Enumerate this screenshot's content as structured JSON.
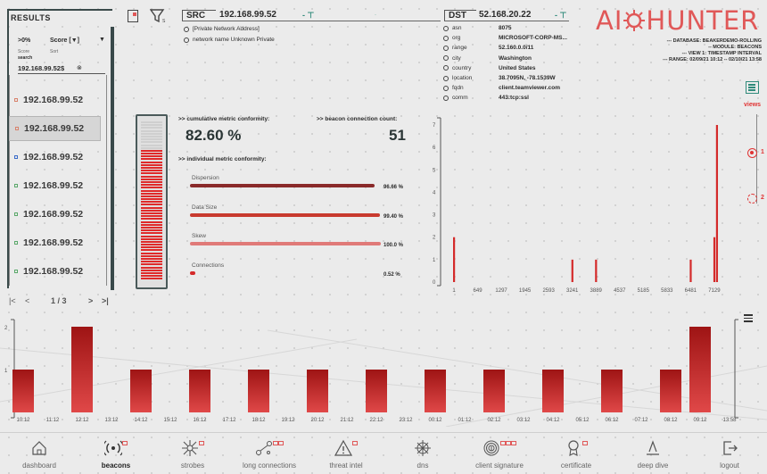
{
  "results": {
    "title": "RESULTS",
    "filter_value": ">0%",
    "sort_value": "Score [▼]",
    "filter_caption": "Score",
    "sort_caption": "Sort",
    "search_caption": "search",
    "search_value": "192.168.99.52$",
    "items": [
      "192.168.99.52",
      "192.168.99.52",
      "192.168.99.52",
      "192.168.99.52",
      "192.168.99.52",
      "192.168.99.52",
      "192.168.99.52"
    ],
    "selected_index": 1,
    "pager": "1 / 3"
  },
  "src": {
    "tab": "SRC",
    "ip": "192.168.99.52",
    "lines": [
      "[Private Network Address]",
      "network name  Unknown Private"
    ]
  },
  "dst": {
    "tab": "DST",
    "ip": "52.168.20.22",
    "fields": [
      {
        "k": "asn",
        "v": "8075"
      },
      {
        "k": "org",
        "v": "MICROSOFT-CORP-MS..."
      },
      {
        "k": "range",
        "v": "52.160.0.0/11"
      },
      {
        "k": "city",
        "v": "Washington"
      },
      {
        "k": "country",
        "v": "United States"
      },
      {
        "k": "location",
        "v": "38.7095N, -78.1539W"
      },
      {
        "k": "fqdn",
        "v": "client.teamviewer.com"
      },
      {
        "k": "comm",
        "v": "443:tcp:ssl"
      }
    ]
  },
  "logo": {
    "left": "AI",
    "right": "HUNTER"
  },
  "meta": [
    "--- DATABASE: BEAKERDEMO-ROLLING",
    "-- MODULE: BEACONS",
    "--- VIEW 1: TIMESTAMP INTERVAL",
    "--- RANGE: 02/09/21 10:12 -- 02/10/21 13:58"
  ],
  "views": {
    "label": "views",
    "options": [
      "1",
      "2"
    ]
  },
  "metrics": {
    "cumulative_label": ">> cumulative metric conformity:",
    "cumulative_value": "82.60 %",
    "cumulative_fraction": 0.826,
    "count_label": ">> beacon connection count:",
    "count_value": "51",
    "individual_label": ">> individual metric conformity:",
    "items": [
      {
        "name": "Dispersion",
        "pct": "96.66 %",
        "fraction": 0.9666,
        "color": "#8a2a2a"
      },
      {
        "name": "Data Size",
        "pct": "99.40 %",
        "fraction": 0.994,
        "color": "#c83a2e"
      },
      {
        "name": "Skew",
        "pct": "100.0 %",
        "fraction": 1.0,
        "color": "#e07a78"
      },
      {
        "name": "Connections",
        "pct": "0.52 %",
        "fraction": 0.0052,
        "color": "#d42a2a"
      }
    ]
  },
  "chart_data": [
    {
      "type": "bar",
      "x_ticks": [
        "1",
        "649",
        "1297",
        "1945",
        "2593",
        "3241",
        "3889",
        "4537",
        "5185",
        "5833",
        "6481",
        "7129"
      ],
      "y_ticks": [
        "0",
        "1",
        "2",
        "3",
        "4",
        "5",
        "6",
        "7"
      ],
      "ylim": [
        0,
        7
      ],
      "xlim": [
        1,
        7400
      ],
      "bars": [
        {
          "x": 1,
          "y": 2
        },
        {
          "x": 3241,
          "y": 1
        },
        {
          "x": 3889,
          "y": 1
        },
        {
          "x": 6481,
          "y": 1
        },
        {
          "x": 7129,
          "y": 2
        },
        {
          "x": 7200,
          "y": 7
        }
      ]
    },
    {
      "type": "bar",
      "categories": [
        "10:12",
        "11:12",
        "12:12",
        "13:12",
        "14:12",
        "15:12",
        "16:12",
        "17:12",
        "18:12",
        "19:12",
        "20:12",
        "21:12",
        "22:12",
        "23:12",
        "00:12",
        "01:12",
        "02:12",
        "03:12",
        "04:12",
        "05:12",
        "06:12",
        "07:12",
        "08:12",
        "09:12",
        "13:58"
      ],
      "values": [
        1,
        0,
        2,
        0,
        1,
        0,
        1,
        0,
        1,
        0,
        1,
        0,
        1,
        0,
        1,
        0,
        1,
        0,
        1,
        0,
        1,
        0,
        1,
        2,
        0
      ],
      "y_ticks": [
        "1",
        "2"
      ],
      "ylim": [
        0,
        2
      ]
    }
  ],
  "nav": [
    {
      "label": "dashboard",
      "icon": "home-icon",
      "badges": 0
    },
    {
      "label": "beacons",
      "icon": "beacon-icon",
      "badges": 1,
      "active": true
    },
    {
      "label": "strobes",
      "icon": "strobe-icon",
      "badges": 1
    },
    {
      "label": "long connections",
      "icon": "connections-icon",
      "badges": 2
    },
    {
      "label": "threat intel",
      "icon": "warning-icon",
      "badges": 1
    },
    {
      "label": "dns",
      "icon": "dns-icon",
      "badges": 0
    },
    {
      "label": "client signature",
      "icon": "fingerprint-icon",
      "badges": 3
    },
    {
      "label": "certificate",
      "icon": "certificate-icon",
      "badges": 1
    },
    {
      "label": "deep dive",
      "icon": "deep-dive-icon",
      "badges": 0
    },
    {
      "label": "logout",
      "icon": "logout-icon",
      "badges": 0
    }
  ]
}
